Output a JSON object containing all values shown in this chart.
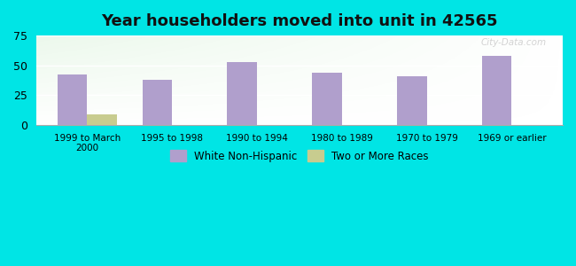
{
  "title": "Year householders moved into unit in 42565",
  "categories": [
    "1999 to March\n2000",
    "1995 to 1998",
    "1990 to 1994",
    "1980 to 1989",
    "1970 to 1979",
    "1969 or earlier"
  ],
  "white_values": [
    42,
    38,
    53,
    44,
    41,
    58
  ],
  "two_or_more_values": [
    9,
    0,
    0,
    0,
    0,
    0
  ],
  "white_color": "#b09fcc",
  "two_or_more_color": "#c8cc8f",
  "ylim": [
    0,
    75
  ],
  "yticks": [
    0,
    25,
    50,
    75
  ],
  "figure_bg": "#00e5e5",
  "legend_labels": [
    "White Non-Hispanic",
    "Two or More Races"
  ],
  "bar_width": 0.35,
  "title_fontsize": 13,
  "watermark": "City-Data.com"
}
